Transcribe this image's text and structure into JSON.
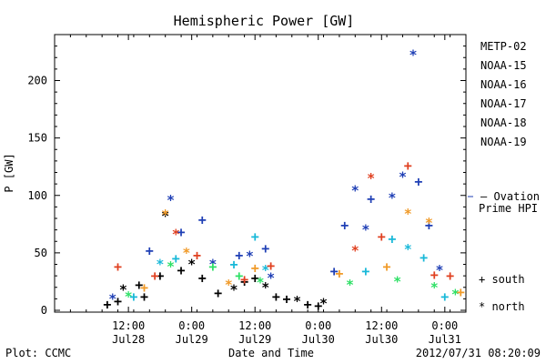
{
  "chart_data": {
    "type": "scatter",
    "title": "Hemispheric Power [GW]",
    "xlabel": "Date and Time",
    "ylabel": "P [GW]",
    "ylim": [
      0,
      240
    ],
    "xlim": [
      "2012-07-27T22:00",
      "2012-07-31T04:00"
    ],
    "y_ticks": [
      0,
      50,
      100,
      150,
      200
    ],
    "x_ticks": [
      {
        "time": "2012-07-28T12:00",
        "label1": "12:00",
        "label2": "Jul28"
      },
      {
        "time": "2012-07-29T00:00",
        "label1": "0:00",
        "label2": "Jul29"
      },
      {
        "time": "2012-07-29T12:00",
        "label1": "12:00",
        "label2": "Jul29"
      },
      {
        "time": "2012-07-30T00:00",
        "label1": "0:00",
        "label2": "Jul30"
      },
      {
        "time": "2012-07-30T12:00",
        "label1": "12:00",
        "label2": "Jul30"
      },
      {
        "time": "2012-07-31T00:00",
        "label1": "0:00",
        "label2": "Jul31"
      }
    ],
    "series": [
      {
        "name": "METP-02",
        "color": "#000000",
        "points": [
          {
            "x": "2012-07-28T08:00",
            "y": 5,
            "m": "+"
          },
          {
            "x": "2012-07-28T10:00",
            "y": 8,
            "m": "+"
          },
          {
            "x": "2012-07-28T11:00",
            "y": 18,
            "m": "*"
          },
          {
            "x": "2012-07-28T14:00",
            "y": 22,
            "m": "+"
          },
          {
            "x": "2012-07-28T15:00",
            "y": 12,
            "m": "+"
          },
          {
            "x": "2012-07-28T18:00",
            "y": 30,
            "m": "+"
          },
          {
            "x": "2012-07-28T19:00",
            "y": 82,
            "m": "*"
          },
          {
            "x": "2012-07-28T22:00",
            "y": 35,
            "m": "+"
          },
          {
            "x": "2012-07-29T00:00",
            "y": 40,
            "m": "*"
          },
          {
            "x": "2012-07-29T02:00",
            "y": 28,
            "m": "+"
          },
          {
            "x": "2012-07-29T05:00",
            "y": 15,
            "m": "+"
          },
          {
            "x": "2012-07-29T08:00",
            "y": 18,
            "m": "*"
          },
          {
            "x": "2012-07-29T10:00",
            "y": 25,
            "m": "+"
          },
          {
            "x": "2012-07-29T12:00",
            "y": 28,
            "m": "+"
          },
          {
            "x": "2012-07-29T14:00",
            "y": 20,
            "m": "*"
          },
          {
            "x": "2012-07-29T16:00",
            "y": 12,
            "m": "+"
          },
          {
            "x": "2012-07-29T18:00",
            "y": 10,
            "m": "+"
          },
          {
            "x": "2012-07-29T20:00",
            "y": 8,
            "m": "*"
          },
          {
            "x": "2012-07-29T22:00",
            "y": 5,
            "m": "+"
          },
          {
            "x": "2012-07-30T00:00",
            "y": 4,
            "m": "+"
          },
          {
            "x": "2012-07-30T01:00",
            "y": 6,
            "m": "*"
          }
        ]
      },
      {
        "name": "NOAA-15",
        "color": "#1f3fb5",
        "points": [
          {
            "x": "2012-07-28T09:00",
            "y": 10,
            "m": "*"
          },
          {
            "x": "2012-07-28T16:00",
            "y": 52,
            "m": "+"
          },
          {
            "x": "2012-07-28T20:00",
            "y": 96,
            "m": "*"
          },
          {
            "x": "2012-07-28T22:00",
            "y": 68,
            "m": "+"
          },
          {
            "x": "2012-07-29T02:00",
            "y": 79,
            "m": "+"
          },
          {
            "x": "2012-07-29T04:00",
            "y": 40,
            "m": "*"
          },
          {
            "x": "2012-07-29T09:00",
            "y": 48,
            "m": "+"
          },
          {
            "x": "2012-07-29T11:00",
            "y": 47,
            "m": "*"
          },
          {
            "x": "2012-07-29T14:00",
            "y": 54,
            "m": "+"
          },
          {
            "x": "2012-07-29T15:00",
            "y": 28,
            "m": "*"
          },
          {
            "x": "2012-07-30T03:00",
            "y": 34,
            "m": "+"
          },
          {
            "x": "2012-07-30T05:00",
            "y": 74,
            "m": "+"
          },
          {
            "x": "2012-07-30T07:00",
            "y": 104,
            "m": "*"
          },
          {
            "x": "2012-07-30T09:00",
            "y": 70,
            "m": "*"
          },
          {
            "x": "2012-07-30T10:00",
            "y": 97,
            "m": "+"
          },
          {
            "x": "2012-07-30T14:00",
            "y": 98,
            "m": "*"
          },
          {
            "x": "2012-07-30T16:00",
            "y": 116,
            "m": "*"
          },
          {
            "x": "2012-07-30T18:00",
            "y": 222,
            "m": "*"
          },
          {
            "x": "2012-07-30T19:00",
            "y": 112,
            "m": "+"
          },
          {
            "x": "2012-07-30T21:00",
            "y": 74,
            "m": "+"
          },
          {
            "x": "2012-07-30T23:00",
            "y": 35,
            "m": "*"
          }
        ]
      },
      {
        "name": "NOAA-16",
        "color": "#18b8d8",
        "points": [
          {
            "x": "2012-07-28T13:00",
            "y": 12,
            "m": "+"
          },
          {
            "x": "2012-07-28T18:00",
            "y": 40,
            "m": "*"
          },
          {
            "x": "2012-07-28T21:00",
            "y": 45,
            "m": "+"
          },
          {
            "x": "2012-07-29T08:00",
            "y": 40,
            "m": "+"
          },
          {
            "x": "2012-07-29T12:00",
            "y": 64,
            "m": "+"
          },
          {
            "x": "2012-07-29T14:00",
            "y": 35,
            "m": "*"
          },
          {
            "x": "2012-07-30T09:00",
            "y": 34,
            "m": "+"
          },
          {
            "x": "2012-07-30T14:00",
            "y": 62,
            "m": "+"
          },
          {
            "x": "2012-07-30T17:00",
            "y": 53,
            "m": "*"
          },
          {
            "x": "2012-07-30T20:00",
            "y": 46,
            "m": "+"
          },
          {
            "x": "2012-07-31T00:00",
            "y": 12,
            "m": "+"
          }
        ]
      },
      {
        "name": "NOAA-17",
        "color": "#2ee066",
        "points": [
          {
            "x": "2012-07-28T12:00",
            "y": 12,
            "m": "*"
          },
          {
            "x": "2012-07-28T20:00",
            "y": 38,
            "m": "*"
          },
          {
            "x": "2012-07-29T04:00",
            "y": 38,
            "m": "+"
          },
          {
            "x": "2012-07-29T09:00",
            "y": 30,
            "m": "+"
          },
          {
            "x": "2012-07-29T13:00",
            "y": 24,
            "m": "*"
          },
          {
            "x": "2012-07-30T06:00",
            "y": 22,
            "m": "*"
          },
          {
            "x": "2012-07-30T15:00",
            "y": 25,
            "m": "*"
          },
          {
            "x": "2012-07-30T22:00",
            "y": 20,
            "m": "*"
          },
          {
            "x": "2012-07-31T02:00",
            "y": 14,
            "m": "*"
          }
        ]
      },
      {
        "name": "NOAA-18",
        "color": "#f09a28",
        "points": [
          {
            "x": "2012-07-28T15:00",
            "y": 20,
            "m": "+"
          },
          {
            "x": "2012-07-28T19:00",
            "y": 83,
            "m": "*"
          },
          {
            "x": "2012-07-28T23:00",
            "y": 50,
            "m": "*"
          },
          {
            "x": "2012-07-29T07:00",
            "y": 22,
            "m": "*"
          },
          {
            "x": "2012-07-29T12:00",
            "y": 37,
            "m": "+"
          },
          {
            "x": "2012-07-30T04:00",
            "y": 32,
            "m": "+"
          },
          {
            "x": "2012-07-30T13:00",
            "y": 38,
            "m": "+"
          },
          {
            "x": "2012-07-30T17:00",
            "y": 84,
            "m": "*"
          },
          {
            "x": "2012-07-30T21:00",
            "y": 76,
            "m": "*"
          },
          {
            "x": "2012-07-31T03:00",
            "y": 16,
            "m": "+"
          }
        ]
      },
      {
        "name": "NOAA-19",
        "color": "#e04020",
        "points": [
          {
            "x": "2012-07-28T10:00",
            "y": 38,
            "m": "+"
          },
          {
            "x": "2012-07-28T17:00",
            "y": 30,
            "m": "+"
          },
          {
            "x": "2012-07-28T21:00",
            "y": 66,
            "m": "*"
          },
          {
            "x": "2012-07-29T01:00",
            "y": 48,
            "m": "+"
          },
          {
            "x": "2012-07-29T10:00",
            "y": 27,
            "m": "+"
          },
          {
            "x": "2012-07-29T15:00",
            "y": 39,
            "m": "+"
          },
          {
            "x": "2012-07-30T07:00",
            "y": 52,
            "m": "*"
          },
          {
            "x": "2012-07-30T10:00",
            "y": 115,
            "m": "*"
          },
          {
            "x": "2012-07-30T12:00",
            "y": 64,
            "m": "+"
          },
          {
            "x": "2012-07-30T17:00",
            "y": 126,
            "m": "+"
          },
          {
            "x": "2012-07-30T22:00",
            "y": 31,
            "m": "+"
          },
          {
            "x": "2012-07-31T01:00",
            "y": 30,
            "m": "+"
          }
        ]
      }
    ],
    "ovation_label_line1": "— Ovation",
    "ovation_label_line2": "Prime HPI",
    "ovation_color": "#1f3fb5",
    "marker_legend": [
      {
        "symbol": "+",
        "label": "south"
      },
      {
        "symbol": "*",
        "label": "north"
      }
    ]
  },
  "footer": {
    "plot_credit": "Plot: CCMC",
    "timestamp": "2012/07/31 08:20:09"
  }
}
